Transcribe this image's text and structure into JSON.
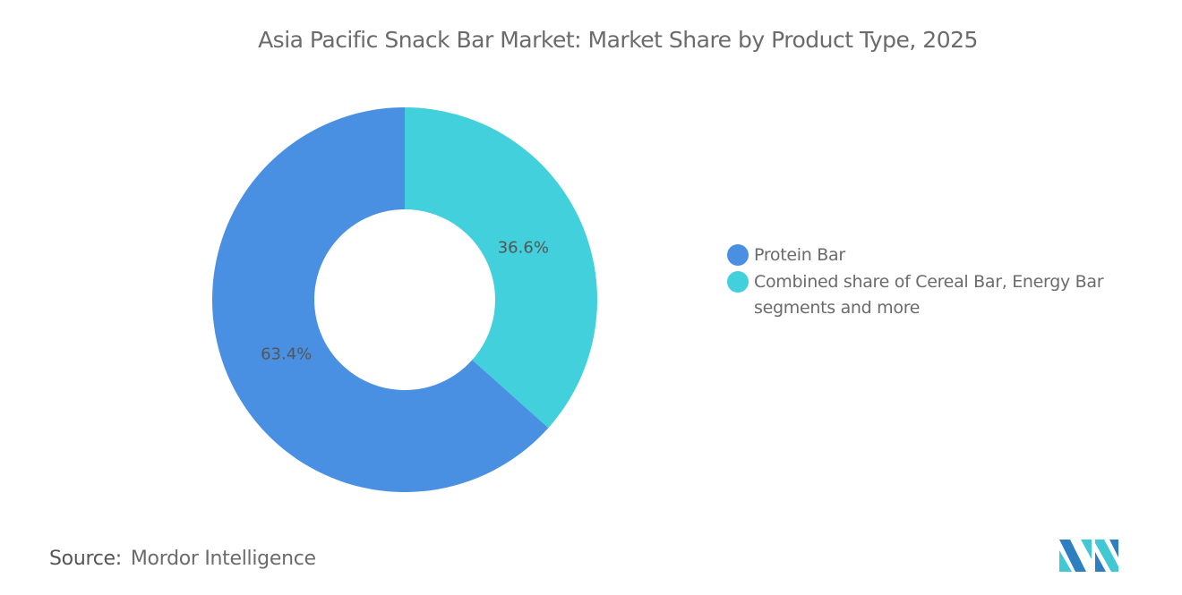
{
  "chart_data": {
    "type": "pie",
    "variant": "donut",
    "title": "Asia Pacific Snack Bar Market: Market Share by Product Type, 2025",
    "categories": [
      "Protein Bar",
      "Combined share of Cereal Bar, Energy Bar segments and more"
    ],
    "values": [
      63.4,
      36.6
    ],
    "data_labels": [
      "63.4%",
      "36.6%"
    ],
    "colors": [
      "#4a90e2",
      "#41d0dc"
    ],
    "legend_position": "right"
  },
  "source": {
    "label": "Source:",
    "value": "Mordor Intelligence"
  },
  "logo": {
    "name": "mordor-intelligence-logo",
    "colors": [
      "#2e7fc1",
      "#41c8d2"
    ]
  }
}
